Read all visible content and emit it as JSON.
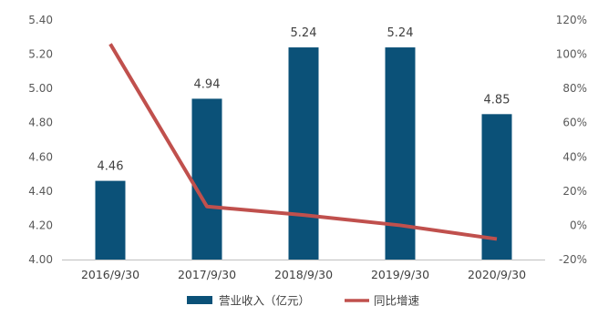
{
  "chart_data": {
    "type": "bar",
    "categories": [
      "2016/9/30",
      "2017/9/30",
      "2018/9/30",
      "2019/9/30",
      "2020/9/30"
    ],
    "series": [
      {
        "name": "营业收入（亿元）",
        "type": "bar",
        "axis": "left",
        "color": "#0b5178",
        "values": [
          4.46,
          4.94,
          5.24,
          5.24,
          4.85
        ],
        "labels": [
          "4.46",
          "4.94",
          "5.24",
          "5.24",
          "4.85"
        ]
      },
      {
        "name": "同比增速",
        "type": "line",
        "axis": "right",
        "color": "#c0504d",
        "values": [
          106,
          11,
          6,
          0,
          -8
        ]
      }
    ],
    "ylim_left": [
      4.0,
      5.4
    ],
    "yticks_left": [
      "4.00",
      "4.20",
      "4.40",
      "4.60",
      "4.80",
      "5.00",
      "5.20",
      "5.40"
    ],
    "ylim_right": [
      -20,
      120
    ],
    "yticks_right": [
      "-20%",
      "0%",
      "20%",
      "40%",
      "60%",
      "80%",
      "100%",
      "120%"
    ],
    "grid": false,
    "legend_position": "bottom-center"
  }
}
